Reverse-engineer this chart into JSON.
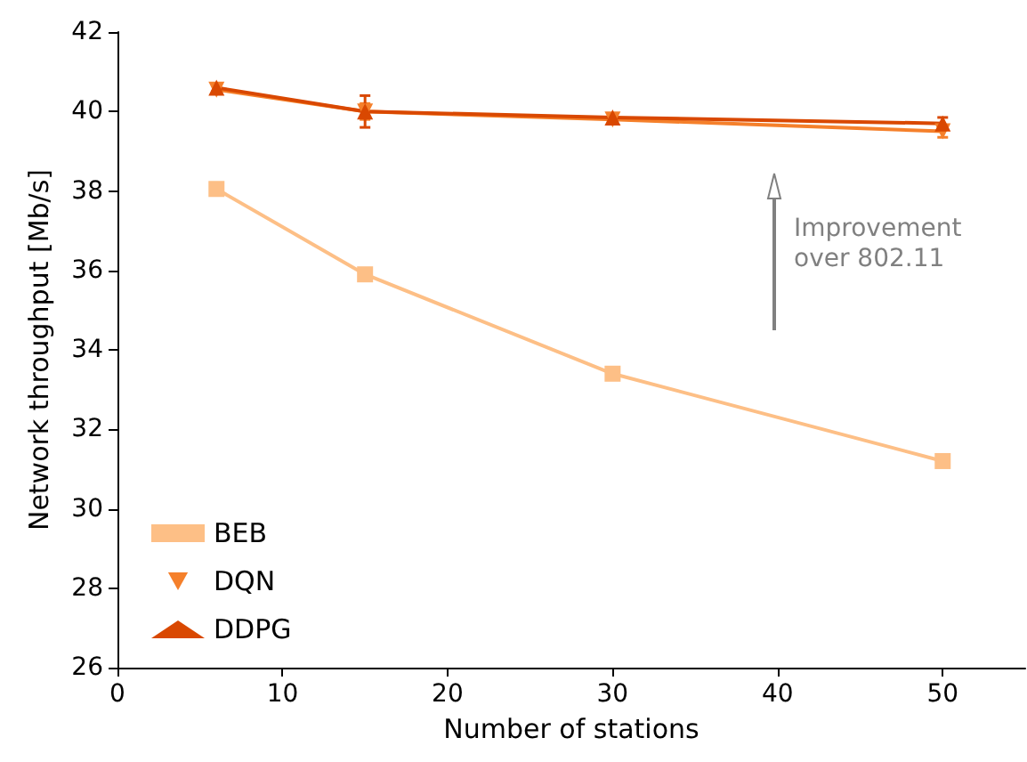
{
  "chart_data": {
    "type": "line",
    "xlabel": "Number of stations",
    "ylabel": "Network throughput [Mb/s]",
    "x": [
      6,
      15,
      30,
      50
    ],
    "series": [
      {
        "name": "BEB",
        "color": "#fdbf86",
        "marker": "square",
        "values": [
          38.05,
          35.9,
          33.4,
          31.2
        ],
        "errors": [
          0.1,
          0.1,
          0.1,
          0.1
        ]
      },
      {
        "name": "DQN",
        "color": "#f5802b",
        "marker": "triangle-down",
        "values": [
          40.55,
          40.0,
          39.8,
          39.5
        ],
        "errors": [
          0.1,
          0.2,
          0.1,
          0.15
        ]
      },
      {
        "name": "DDPG",
        "color": "#d94801",
        "marker": "triangle",
        "values": [
          40.6,
          40.0,
          39.85,
          39.7
        ],
        "errors": [
          0.1,
          0.4,
          0.1,
          0.15
        ]
      }
    ],
    "xlim": [
      0,
      55
    ],
    "xticks": [
      0,
      10,
      20,
      30,
      40,
      50
    ],
    "ylim": [
      26,
      42
    ],
    "yticks": [
      26,
      28,
      30,
      32,
      34,
      36,
      38,
      40,
      42
    ],
    "annotations": [
      "Improvement\nover 802.11"
    ],
    "legend": "bottom left",
    "grid": false
  }
}
